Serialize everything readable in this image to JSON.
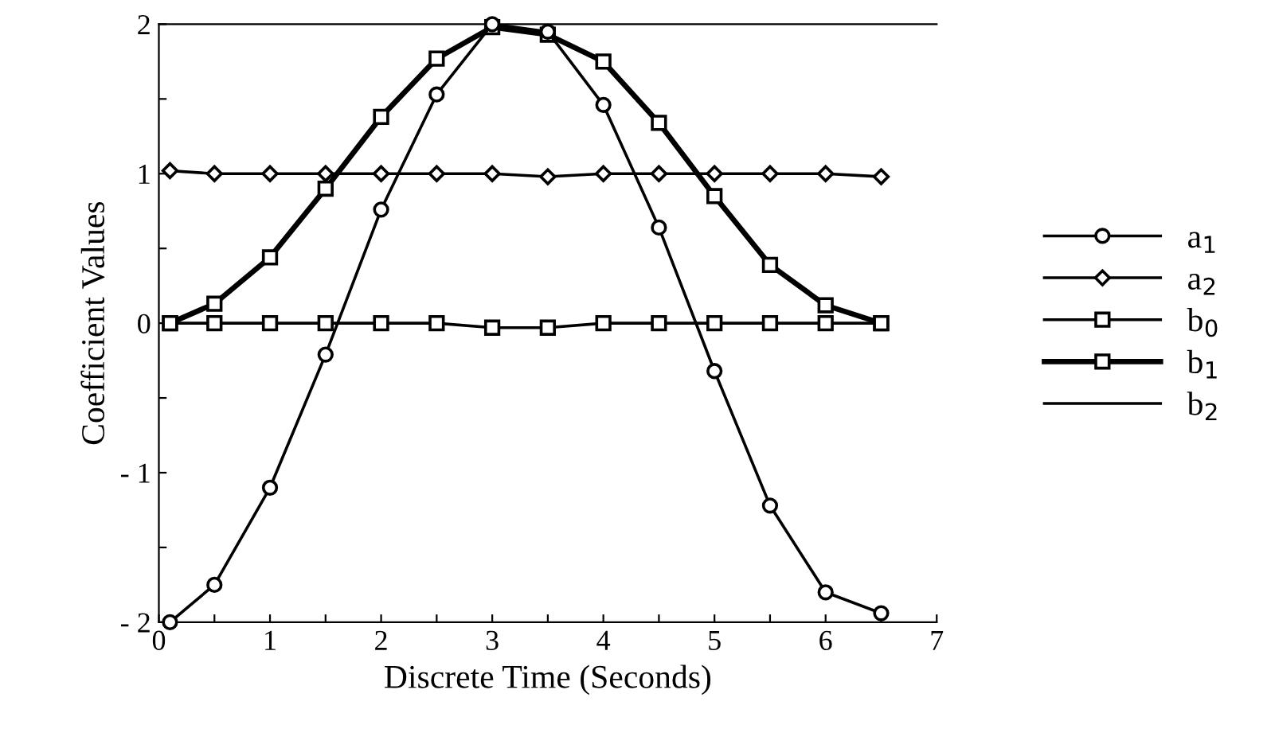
{
  "chart_data": {
    "type": "line",
    "xlabel": "Discrete Time (Seconds)",
    "ylabel": "Coefficient Values",
    "x": [
      0.1,
      0.5,
      1,
      1.5,
      2,
      2.5,
      3,
      3.5,
      4,
      4.5,
      5,
      5.5,
      6,
      6.5
    ],
    "xlim": [
      0,
      7
    ],
    "ylim": [
      -2,
      2
    ],
    "xticks": [
      0,
      {
        "value": 0.5,
        "label": null
      },
      1,
      {
        "value": 1.5,
        "label": null
      },
      2,
      {
        "value": 2.5,
        "label": null
      },
      3,
      {
        "value": 3.5,
        "label": null
      },
      4,
      {
        "value": 4.5,
        "label": null
      },
      5,
      {
        "value": 5.5,
        "label": null
      },
      6,
      {
        "value": 6.5,
        "label": null
      },
      7
    ],
    "yticks": [
      {
        "value": -2,
        "label": "- 2"
      },
      {
        "value": -1.5,
        "label": null
      },
      {
        "value": -1,
        "label": "- 1"
      },
      {
        "value": -0.5,
        "label": null
      },
      0,
      {
        "value": 0.5,
        "label": null
      },
      1,
      {
        "value": 1.5,
        "label": null
      },
      2
    ],
    "grid": false,
    "legend": "right",
    "series": [
      {
        "name": "a$_{1}$",
        "color": "#000000",
        "marker": "circle",
        "values": [
          -2.0,
          -1.75,
          -1.1,
          -0.21,
          0.76,
          1.53,
          2.0,
          1.95,
          1.46,
          0.64,
          -0.32,
          -1.22,
          -1.8,
          -1.94
        ]
      },
      {
        "name": "a$_{2}$",
        "color": "#000000",
        "marker": "diamond",
        "values": [
          1.02,
          1.0,
          1.0,
          1.0,
          1.0,
          1.0,
          1.0,
          0.98,
          1.0,
          1.0,
          1.0,
          1.0,
          1.0,
          0.98
        ]
      },
      {
        "name": "b$_{0}$",
        "color": "#000000",
        "marker": "square",
        "values": [
          0,
          0,
          0,
          0,
          0,
          0,
          -0.03,
          -0.03,
          0,
          0,
          0,
          0,
          0,
          0
        ]
      },
      {
        "name": "b$_{1}$",
        "color": "#000000",
        "marker": "square",
        "values": [
          0,
          0.13,
          0.44,
          0.9,
          1.38,
          1.77,
          1.98,
          1.93,
          1.75,
          1.34,
          0.85,
          0.39,
          0.12,
          0
        ]
      },
      {
        "name": "b$_{2}$",
        "color": "#000000",
        "marker": "none",
        "values": [
          null,
          null,
          null,
          null,
          null,
          null,
          null,
          null,
          null,
          null,
          null,
          null,
          null,
          null
        ]
      }
    ]
  }
}
